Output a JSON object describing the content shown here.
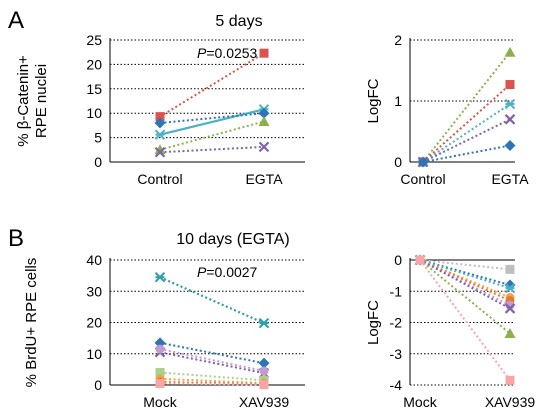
{
  "panels": [
    {
      "id": "A",
      "letter": "A",
      "title": "5 days"
    },
    {
      "id": "B",
      "letter": "B",
      "title": "10 days (EGTA)"
    }
  ],
  "chart_data": [
    {
      "type": "line",
      "title": "5 days",
      "ylabel_line1": "% β-Catenin+",
      "ylabel_line2": "RPE nuclei",
      "categories": [
        "Control",
        "EGTA"
      ],
      "ylim": [
        0,
        25
      ],
      "yticks": [
        0,
        5,
        10,
        15,
        20,
        25
      ],
      "grid": "horizontal dotted",
      "annotation": {
        "italic": "P",
        "text": "=0.0253"
      },
      "series": [
        {
          "color": "#d9534f",
          "marker": "square",
          "dash": true,
          "values": [
            9.3,
            22.3
          ]
        },
        {
          "color": "#4bb0c9",
          "marker": "asterisk",
          "dash": false,
          "values": [
            5.6,
            10.8
          ],
          "mean": true
        },
        {
          "color": "#2e75b6",
          "marker": "diamond",
          "dash": true,
          "values": [
            8.0,
            10.0
          ]
        },
        {
          "color": "#8db04e",
          "marker": "triangle",
          "dash": true,
          "values": [
            2.5,
            8.3
          ]
        },
        {
          "color": "#7f62a8",
          "marker": "x",
          "dash": true,
          "values": [
            2.0,
            3.1
          ]
        }
      ]
    },
    {
      "type": "line",
      "ylabel": "LogFC",
      "categories": [
        "Control",
        "EGTA"
      ],
      "ylim": [
        0,
        2
      ],
      "yticks": [
        0,
        1,
        2
      ],
      "grid": "horizontal dotted",
      "series": [
        {
          "color": "#8db04e",
          "marker": "triangle",
          "dash": true,
          "values": [
            0,
            1.8
          ]
        },
        {
          "color": "#d9534f",
          "marker": "square",
          "dash": true,
          "values": [
            0,
            1.27
          ]
        },
        {
          "color": "#4bb0c9",
          "marker": "asterisk",
          "dash": true,
          "values": [
            0,
            0.95
          ]
        },
        {
          "color": "#7f62a8",
          "marker": "x",
          "dash": true,
          "values": [
            0,
            0.7
          ]
        },
        {
          "color": "#2e75b6",
          "marker": "diamond",
          "dash": true,
          "values": [
            0,
            0.27
          ]
        }
      ]
    },
    {
      "type": "line",
      "title": "10 days (EGTA)",
      "ylabel": "% BrdU+ RPE cells",
      "categories": [
        "Mock",
        "XAV939"
      ],
      "ylim": [
        0,
        40
      ],
      "yticks": [
        0,
        10,
        20,
        30,
        40
      ],
      "grid": "horizontal dotted",
      "annotation": {
        "italic": "P",
        "text": "=0.0027"
      },
      "series": [
        {
          "color": "#2aa0a8",
          "marker": "asterisk",
          "dash": true,
          "values": [
            34.5,
            19.8
          ],
          "mean": true
        },
        {
          "color": "#2e75b6",
          "marker": "diamond",
          "dash": true,
          "values": [
            13.5,
            7.0
          ]
        },
        {
          "color": "#7f62a8",
          "marker": "x",
          "dash": true,
          "values": [
            10.5,
            3.8
          ]
        },
        {
          "color": "#c39bd3",
          "marker": "circle",
          "dash": true,
          "values": [
            11.5,
            4.5
          ]
        },
        {
          "color": "#a9d18e",
          "marker": "square",
          "dash": true,
          "values": [
            4.0,
            1.5
          ]
        },
        {
          "color": "#f4a442",
          "marker": "circle",
          "dash": true,
          "values": [
            2.0,
            0.6
          ]
        },
        {
          "color": "#e07b39",
          "marker": "circle",
          "dash": true,
          "values": [
            1.0,
            0.3
          ]
        },
        {
          "color": "#f8a5a5",
          "marker": "square",
          "dash": true,
          "values": [
            0.5,
            0.1
          ]
        }
      ]
    },
    {
      "type": "line",
      "ylabel": "LogFC",
      "categories": [
        "Mock",
        "XAV939"
      ],
      "ylim": [
        -4,
        0
      ],
      "yticks": [
        0,
        -1,
        -2,
        -3,
        -4
      ],
      "grid": "horizontal dotted",
      "series": [
        {
          "color": "#bfbfbf",
          "marker": "square",
          "dash": true,
          "values": [
            0,
            -0.3
          ]
        },
        {
          "color": "#2e75b6",
          "marker": "diamond",
          "dash": true,
          "values": [
            0,
            -0.8
          ]
        },
        {
          "color": "#4bb0c9",
          "marker": "asterisk",
          "dash": true,
          "values": [
            0,
            -0.9
          ]
        },
        {
          "color": "#f4a442",
          "marker": "circle",
          "dash": true,
          "values": [
            0,
            -1.2
          ]
        },
        {
          "color": "#e07b39",
          "marker": "circle",
          "dash": true,
          "values": [
            0,
            -1.3
          ]
        },
        {
          "color": "#c39bd3",
          "marker": "circle",
          "dash": true,
          "values": [
            0,
            -1.45
          ]
        },
        {
          "color": "#7f62a8",
          "marker": "x",
          "dash": true,
          "values": [
            0,
            -1.55
          ]
        },
        {
          "color": "#8db04e",
          "marker": "triangle",
          "dash": true,
          "values": [
            0,
            -2.35
          ]
        },
        {
          "color": "#f8a5a5",
          "marker": "square",
          "dash": true,
          "values": [
            0,
            -3.85
          ]
        }
      ]
    }
  ]
}
